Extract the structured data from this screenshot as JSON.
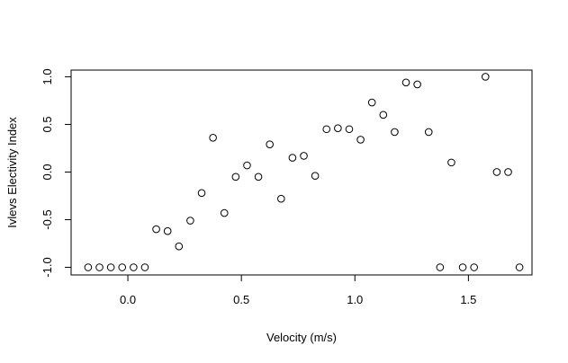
{
  "chart_data": {
    "type": "scatter",
    "title": "",
    "xlabel": "Velocity (m/s)",
    "ylabel": "Ivlevs Electivity Index",
    "xlim": [
      -0.25,
      1.78
    ],
    "ylim": [
      -1.08,
      1.07
    ],
    "xticks": [
      0.0,
      0.5,
      1.0,
      1.5
    ],
    "xtick_labels": [
      "0.0",
      "0.5",
      "1.0",
      "1.5"
    ],
    "yticks": [
      -1.0,
      -0.5,
      0.0,
      0.5,
      1.0
    ],
    "ytick_labels": [
      "-1.0",
      "-0.5",
      "0.0",
      "0.5",
      "1.0"
    ],
    "grid": false,
    "marker": "open-circle",
    "series": [
      {
        "x": [
          -0.175,
          -0.125,
          -0.075,
          -0.025,
          0.025,
          0.075,
          0.125,
          0.175,
          0.225,
          0.275,
          0.325,
          0.375,
          0.425,
          0.475,
          0.525,
          0.575,
          0.625,
          0.675,
          0.725,
          0.775,
          0.825,
          0.875,
          0.925,
          0.975,
          1.025,
          1.075,
          1.125,
          1.175,
          1.225,
          1.275,
          1.325,
          1.375,
          1.425,
          1.475,
          1.525,
          1.575,
          1.625,
          1.675,
          1.725
        ],
        "y": [
          -1.0,
          -1.0,
          -1.0,
          -1.0,
          -1.0,
          -1.0,
          -0.6,
          -0.62,
          -0.78,
          -0.51,
          -0.22,
          0.36,
          -0.43,
          -0.05,
          0.07,
          -0.05,
          0.29,
          -0.28,
          0.15,
          0.17,
          -0.04,
          0.45,
          0.46,
          0.45,
          0.34,
          0.73,
          0.6,
          0.42,
          0.94,
          0.92,
          0.42,
          -1.0,
          0.1,
          -1.0,
          -1.0,
          1.0,
          0.0,
          0.0,
          -1.0
        ]
      }
    ]
  }
}
